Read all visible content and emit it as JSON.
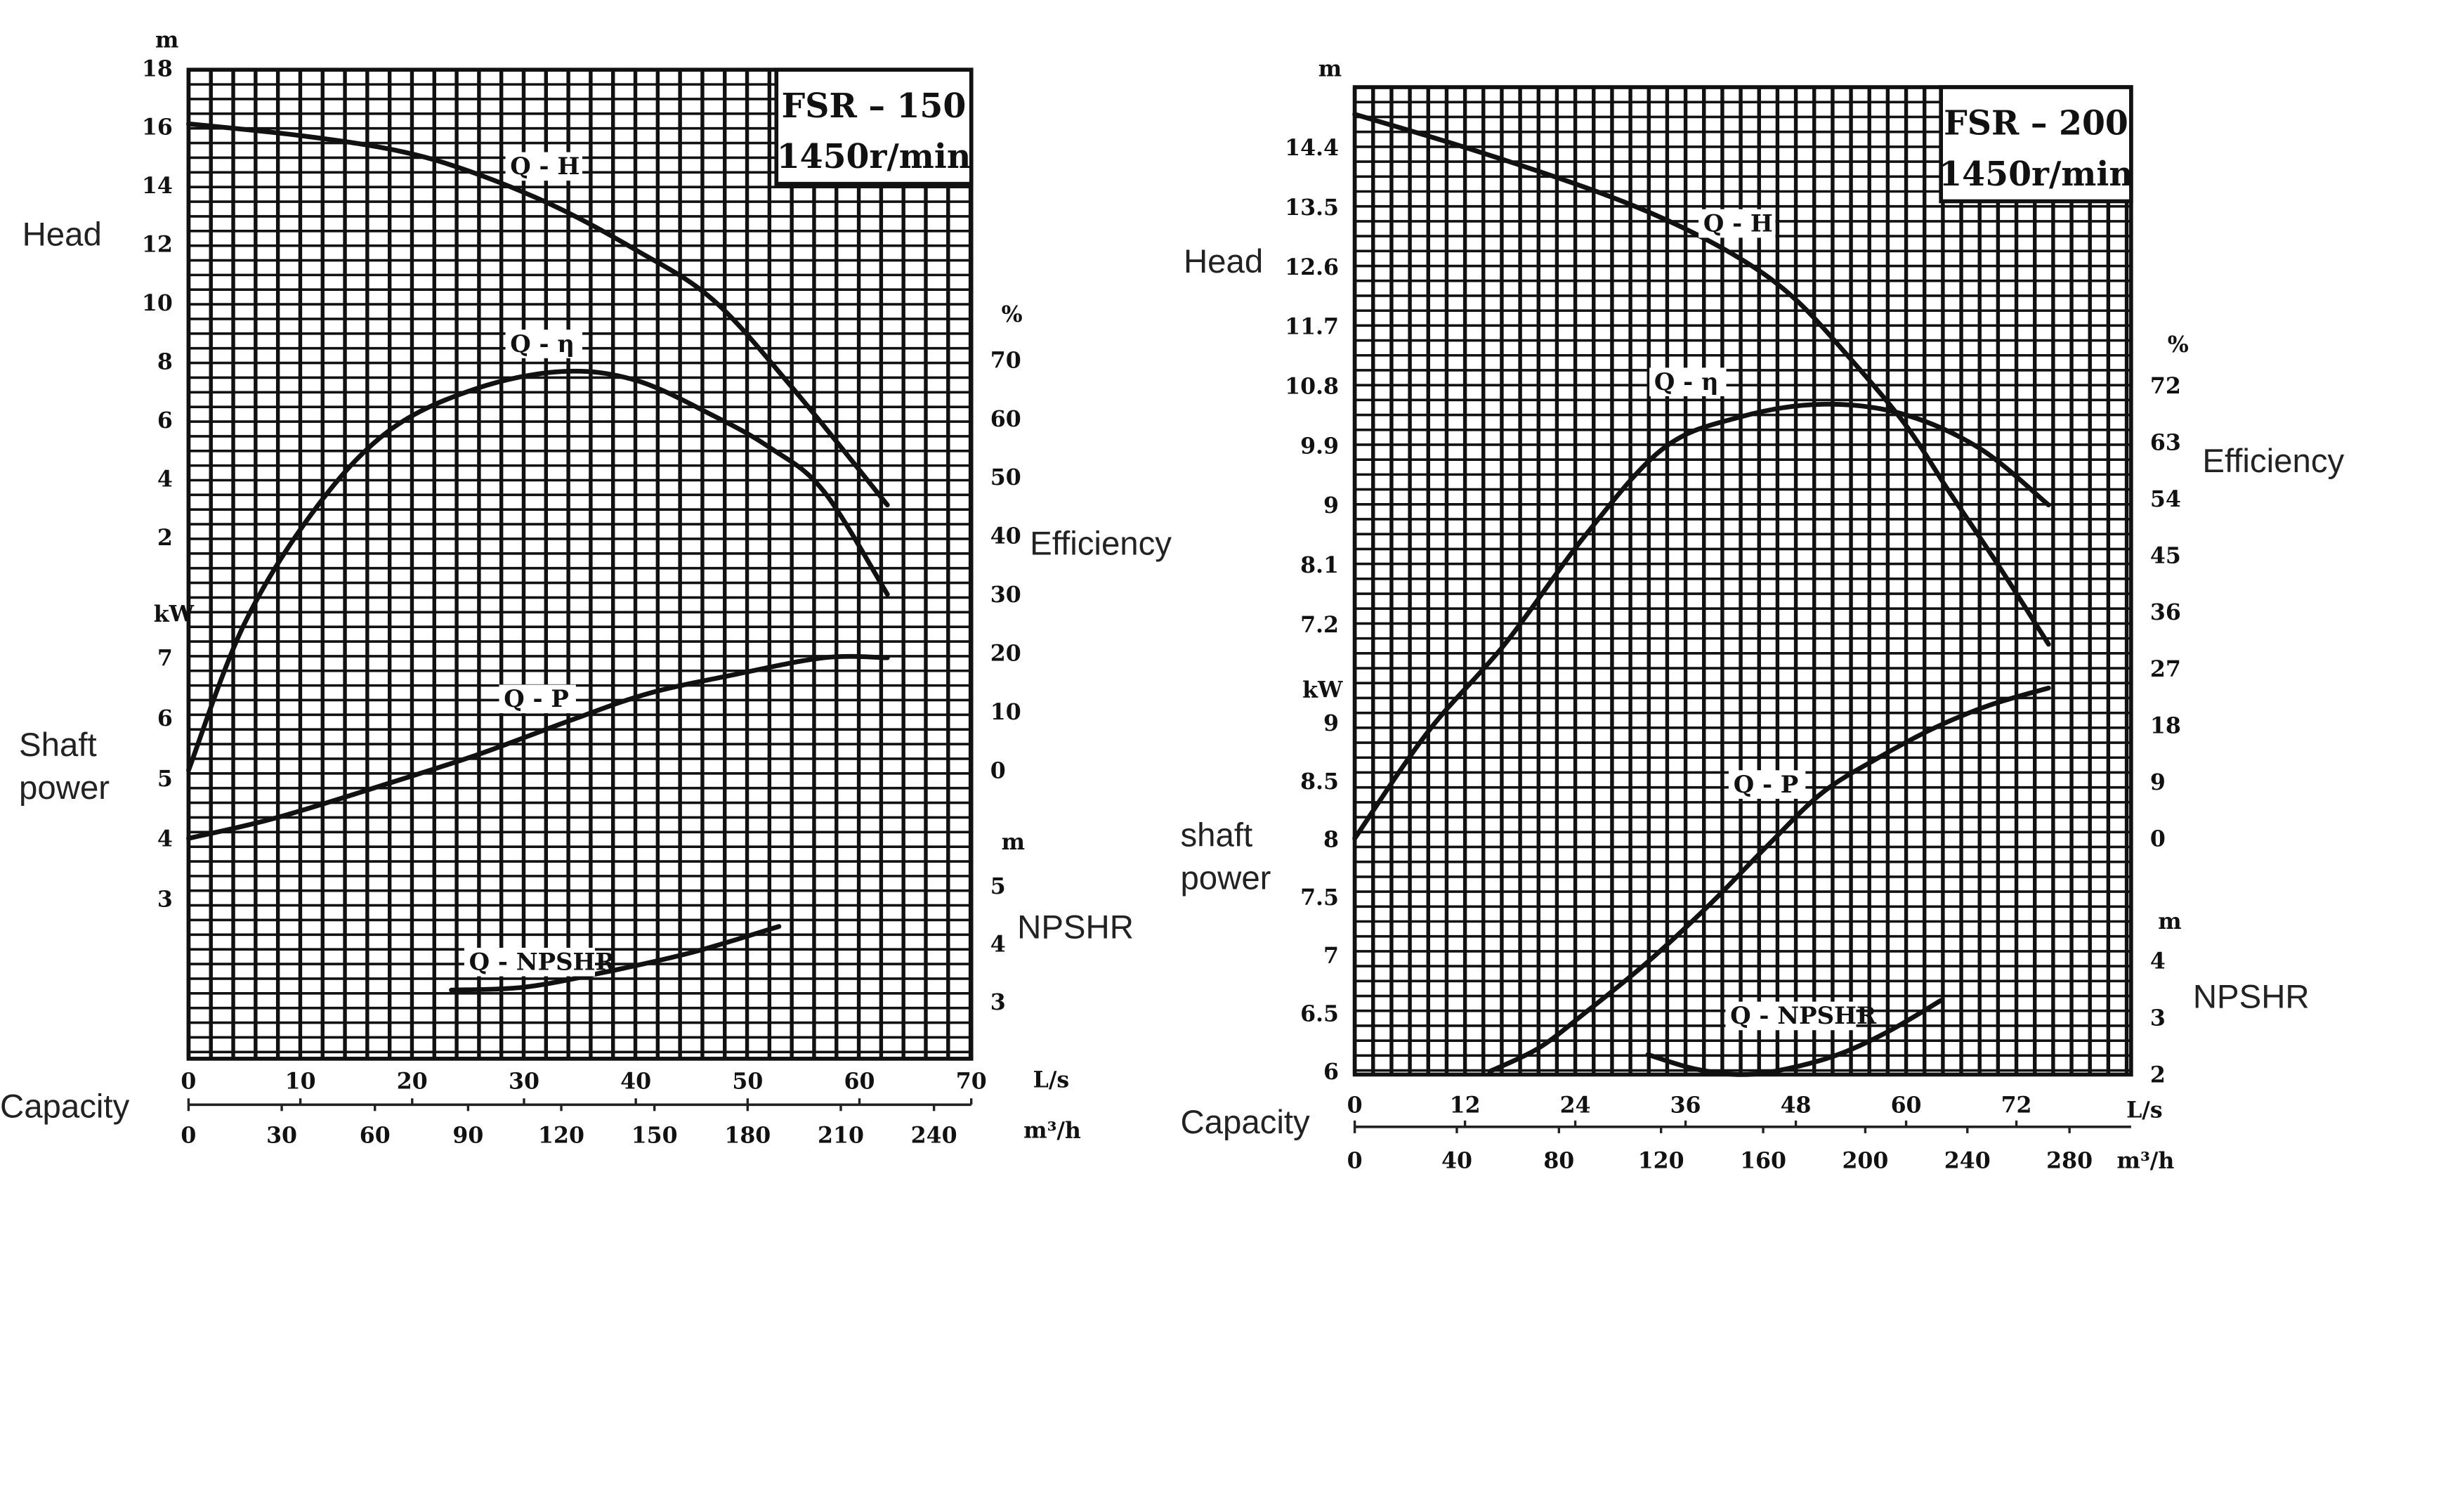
{
  "chart_data": [
    {
      "type": "line",
      "title": "FSR – 150",
      "subtitle": "1450r/min",
      "xlabel": "Capacity",
      "x_units": [
        "L/s",
        "m³/h"
      ],
      "x_ticks_ls": [
        0,
        10,
        20,
        30,
        40,
        50,
        60,
        70
      ],
      "x_ticks_m3h": [
        0,
        30,
        60,
        90,
        120,
        150,
        180,
        210,
        240
      ],
      "xlim": [
        0,
        70
      ],
      "axes": {
        "head": {
          "label": "Head",
          "unit": "m",
          "ticks": [
            2,
            4,
            6,
            8,
            10,
            12,
            14,
            16,
            18
          ]
        },
        "power": {
          "label": "Shaft power",
          "label_lines": [
            "Shaft",
            "power"
          ],
          "unit": "kW",
          "ticks": [
            3,
            4,
            5,
            6,
            7
          ]
        },
        "efficiency": {
          "label": "Efficiency",
          "unit": "%",
          "ticks": [
            0,
            10,
            20,
            30,
            40,
            50,
            60,
            70
          ]
        },
        "npshr": {
          "label": "NPSHR",
          "unit": "m",
          "ticks": [
            3,
            4,
            5
          ]
        }
      },
      "series": [
        {
          "name": "Q - H",
          "axis": "head",
          "x": [
            0,
            10,
            18.5,
            25,
            32.7,
            40,
            46.9,
            54,
            62.5
          ],
          "y": [
            16.1,
            15.7,
            15.2,
            14.5,
            13.3,
            11.8,
            10.1,
            7.1,
            3.1
          ]
        },
        {
          "name": "Q - η",
          "axis": "efficiency",
          "x": [
            0,
            5,
            11.5,
            18,
            25.6,
            33.4,
            40,
            46.9,
            52,
            56.8,
            62.5
          ],
          "y": [
            0,
            25,
            45,
            58,
            65,
            68,
            66.5,
            60.5,
            55,
            47.6,
            30
          ]
        },
        {
          "name": "Q - P",
          "axis": "power",
          "x": [
            0,
            8,
            18.5,
            26,
            34,
            41,
            48.3,
            56.8,
            62.5
          ],
          "y": [
            4.0,
            4.35,
            4.95,
            5.4,
            5.95,
            6.4,
            6.7,
            7.0,
            7.0
          ]
        },
        {
          "name": "Q - NPSHR",
          "axis": "npshr",
          "x": [
            23.5,
            30,
            37,
            45,
            52.8
          ],
          "y": [
            3.2,
            3.25,
            3.5,
            3.85,
            4.3
          ]
        }
      ],
      "grid": true
    },
    {
      "type": "line",
      "title": "FSR – 200",
      "subtitle": "1450r/min",
      "xlabel": "Capacity",
      "x_units": [
        "L/s",
        "m³/h"
      ],
      "x_ticks_ls": [
        0,
        12,
        24,
        36,
        48,
        60,
        72
      ],
      "x_ticks_m3h": [
        0,
        40,
        80,
        120,
        160,
        200,
        240,
        280
      ],
      "xlim": [
        0,
        84
      ],
      "axes": {
        "head": {
          "label": "Head",
          "unit": "m",
          "ticks": [
            7.2,
            8.1,
            9,
            9.9,
            10.8,
            11.7,
            12.6,
            13.5,
            14.4
          ]
        },
        "power": {
          "label": "shaft power",
          "label_lines": [
            "shaft",
            "power"
          ],
          "unit": "kW",
          "ticks": [
            6,
            6.5,
            7,
            7.5,
            8,
            8.5,
            9
          ]
        },
        "efficiency": {
          "label": "Efficiency",
          "unit": "%",
          "ticks": [
            0,
            9,
            18,
            27,
            36,
            45,
            54,
            63,
            72
          ]
        },
        "npshr": {
          "label": "NPSHR",
          "unit": "m",
          "ticks": [
            2,
            3,
            4
          ]
        }
      },
      "series": [
        {
          "name": "Q - H",
          "axis": "head",
          "x": [
            0,
            12,
            25,
            34,
            42.2,
            48,
            54,
            60,
            64.7,
            70,
            75.5
          ],
          "y": [
            14.9,
            14.4,
            13.8,
            13.3,
            12.7,
            12.1,
            11.2,
            10.2,
            9.2,
            8.1,
            6.9
          ]
        },
        {
          "name": "Q - η",
          "axis": "efficiency",
          "x": [
            0,
            8,
            16.4,
            25,
            33.6,
            42,
            50.9,
            59.5,
            68,
            75.5
          ],
          "y": [
            0,
            17,
            31,
            48,
            62,
            67,
            69,
            67.5,
            62,
            53
          ]
        },
        {
          "name": "Q - P",
          "axis": "power",
          "x": [
            14.7,
            20,
            25,
            32,
            38.8,
            45,
            50.9,
            57,
            62.9,
            69,
            75.5
          ],
          "y": [
            6.0,
            6.2,
            6.5,
            6.95,
            7.45,
            7.95,
            8.4,
            8.7,
            8.95,
            9.15,
            9.3
          ]
        },
        {
          "name": "Q - NPSHR",
          "axis": "npshr",
          "x": [
            31.9,
            37,
            42.2,
            47,
            52.6,
            58,
            63.8
          ],
          "y": [
            2.35,
            2.1,
            2.0,
            2.1,
            2.35,
            2.75,
            3.3
          ]
        }
      ],
      "grid": true
    }
  ]
}
